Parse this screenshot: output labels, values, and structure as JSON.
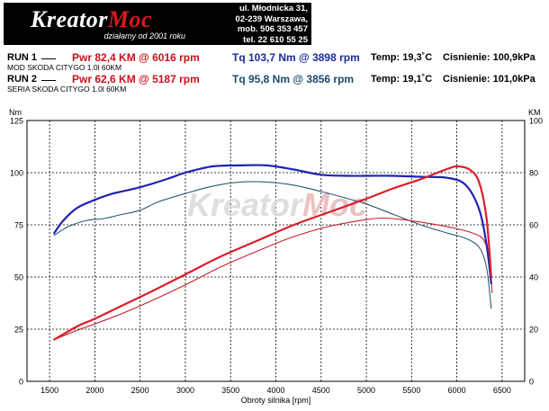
{
  "logo": {
    "brand_prefix": "Kreator",
    "brand_accent": "Moc",
    "tagline": "działamy od 2001 roku"
  },
  "address": {
    "lines": [
      "ul. Młodnicka 31,",
      "02-239  Warszawa,",
      "mob.  506 353 457",
      "tel.  22 610 55 25"
    ]
  },
  "runs": [
    {
      "label": "RUN 1",
      "power": "Pwr  82,4 KM @ 6016 rpm",
      "torque": "Tq 103,7 Nm @ 3898 rpm",
      "temp": "Temp: 19,3˚C",
      "pressure": "Cisnienie: 100,9kPa",
      "description": "MOD SKODA CITYGO 1.0l 60KM"
    },
    {
      "label": "RUN 2",
      "power": "Pwr  62,6 KM @ 5187 rpm",
      "torque": "Tq 95,8 Nm @ 3856 rpm",
      "temp": "Temp: 19,1˚C",
      "pressure": "Cisnienie: 101,0kPa",
      "description": "SERIA SKODA CITYGO 1.0l 60KM"
    }
  ],
  "watermark": {
    "prefix": "Kreator",
    "accent": "Moc"
  },
  "colors": {
    "power1": "#d8202a",
    "torque1": "#1f24b0",
    "power2": "#c8202a",
    "torque2": "#2c5a78",
    "logo_accent": "#d61a1a"
  },
  "chart_data": {
    "type": "line",
    "xlabel": "Obroty silnika [rpm]",
    "ylabel_left": "Nm",
    "ylabel_right": "KM",
    "xlim": [
      1250,
      6750
    ],
    "ylim_left": [
      0,
      125
    ],
    "ylim_right": [
      0,
      100
    ],
    "x_ticks": [
      1500,
      2000,
      2500,
      3000,
      3500,
      4000,
      4500,
      5000,
      5500,
      6000,
      6500
    ],
    "y_ticks_left": [
      0,
      25,
      50,
      75,
      100,
      125
    ],
    "y_ticks_right": [
      0,
      20,
      40,
      60,
      80,
      100
    ],
    "grid": true,
    "series": [
      {
        "key": "torque1",
        "axis": "left",
        "x": [
          1550,
          1650,
          1800,
          2000,
          2200,
          2500,
          2800,
          3000,
          3300,
          3600,
          3900,
          4200,
          4500,
          4800,
          5000,
          5300,
          5600,
          5900,
          6100,
          6250,
          6330,
          6380
        ],
        "y": [
          71,
          77,
          83,
          87,
          90,
          93,
          97,
          100,
          103,
          103.5,
          103.5,
          101.5,
          99,
          98.5,
          98.5,
          98.5,
          98,
          97.5,
          94,
          82,
          65,
          47
        ]
      },
      {
        "key": "torque2",
        "axis": "left",
        "x": [
          1550,
          1700,
          1900,
          2100,
          2300,
          2500,
          2700,
          3000,
          3300,
          3600,
          3900,
          4200,
          4500,
          4800,
          5000,
          5300,
          5600,
          5900,
          6100,
          6250,
          6330,
          6380
        ],
        "y": [
          70,
          74,
          77,
          78,
          80,
          82,
          86,
          90,
          93.5,
          95.5,
          95.5,
          94,
          91,
          87.5,
          85,
          80,
          75,
          71,
          68.5,
          64,
          54,
          35
        ]
      },
      {
        "key": "power1",
        "axis": "right",
        "x": [
          1550,
          1800,
          2000,
          2300,
          2600,
          3000,
          3400,
          3800,
          4200,
          4600,
          5000,
          5300,
          5600,
          5900,
          6016,
          6150,
          6250,
          6330,
          6380
        ],
        "y": [
          16,
          21,
          24,
          29,
          34,
          41,
          48,
          54,
          60,
          65,
          70,
          74,
          77.5,
          81.5,
          82.4,
          81,
          76,
          62,
          40
        ]
      },
      {
        "key": "power2",
        "axis": "right",
        "x": [
          1550,
          1800,
          2000,
          2300,
          2600,
          3000,
          3400,
          3800,
          4200,
          4600,
          5000,
          5187,
          5400,
          5700,
          6000,
          6200,
          6300,
          6360,
          6390
        ],
        "y": [
          16,
          19.5,
          22,
          26,
          30.5,
          37,
          44,
          50,
          55.5,
          59.5,
          62,
          62.6,
          62,
          60.5,
          58.5,
          56.5,
          54,
          47,
          34
        ]
      }
    ]
  }
}
